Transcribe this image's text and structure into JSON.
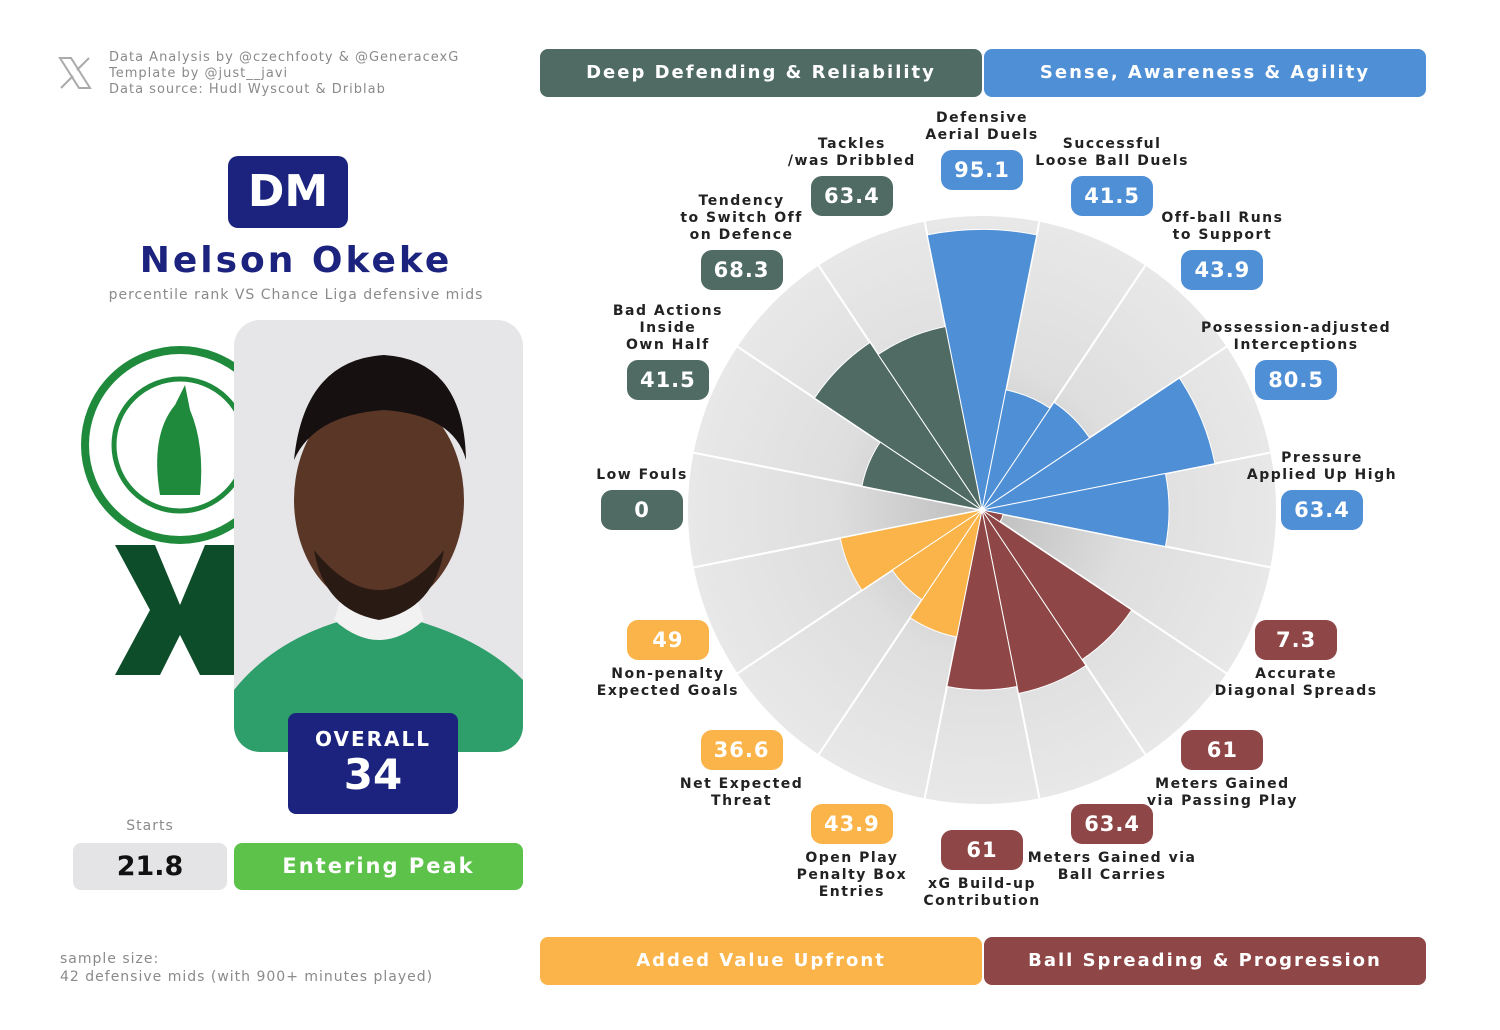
{
  "credits": [
    "Data Analysis by @czechfooty & @GeneracexG",
    "Template by @just__javi",
    "Data source: Hudl Wyscout & Driblab"
  ],
  "position": "DM",
  "player": "Nelson Okeke",
  "subtitle": "percentile rank VS Chance Liga defensive mids",
  "overall": {
    "label": "OVERALL",
    "value": 34
  },
  "starts": {
    "label": "Starts",
    "value": 21.8
  },
  "career_stage": "Entering Peak",
  "sample_size": [
    "sample size:",
    "42 defensive mids (with 900+ minutes played)"
  ],
  "chart_data": {
    "type": "pizza",
    "ylim": [
      0,
      100
    ],
    "series": [
      {
        "name": "Sense, Awareness & Agility",
        "color": "#4e8fd6",
        "categories": [
          "Defensive\nAerial Duels",
          "Successful\nLoose Ball Duels",
          "Off-ball Runs\nto Support",
          "Possession-adjusted\nInterceptions",
          "Pressure\nApplied Up High"
        ],
        "values": [
          95.1,
          41.5,
          43.9,
          80.5,
          63.4
        ]
      },
      {
        "name": "Ball Spreading & Progression",
        "color": "#8f4646",
        "categories": [
          "Accurate\nDiagonal Spreads",
          "Meters Gained\nvia Passing Play",
          "Meters Gained via\nBall Carries",
          "xG Build-up\nContribution"
        ],
        "values": [
          7.3,
          61,
          63.4,
          61
        ]
      },
      {
        "name": "Added Value Upfront",
        "color": "#fbb44a",
        "categories": [
          "Open Play\nPenalty Box\nEntries",
          "Net Expected\nThreat",
          "Non-penalty\nExpected Goals"
        ],
        "values": [
          43.9,
          36.6,
          49
        ]
      },
      {
        "name": "Deep Defending & Reliability",
        "color": "#4f6b64",
        "categories": [
          "Low Fouls",
          "Bad Actions\nInside\nOwn Half",
          "Tendency\nto Switch Off\non Defence",
          "Tackles\n/was Dribbled"
        ],
        "values": [
          0,
          41.5,
          68.3,
          63.4
        ]
      }
    ]
  }
}
